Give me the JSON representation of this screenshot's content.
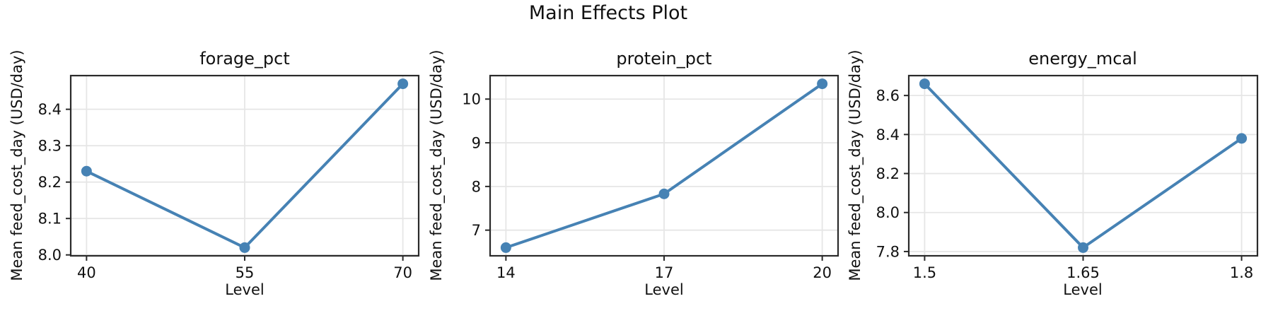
{
  "figure": {
    "title": "Main Effects Plot"
  },
  "style": {
    "accent_color": "#4682B4",
    "grid_color": "#e6e6e6",
    "spine_color": "#2a2a2a",
    "text_color": "#111111",
    "background_color": "#ffffff"
  },
  "chart_data": [
    {
      "type": "line",
      "title": "forage_pct",
      "xlabel": "Level",
      "ylabel": "Mean feed_cost_day (USD/day)",
      "x": [
        40,
        55,
        70
      ],
      "y": [
        8.23,
        8.02,
        8.47
      ],
      "xticks": [
        40,
        55,
        70
      ],
      "xtick_labels": [
        "40",
        "55",
        "70"
      ],
      "yticks": [
        8.0,
        8.1,
        8.2,
        8.3,
        8.4
      ],
      "ytick_labels": [
        "8.0",
        "8.1",
        "8.2",
        "8.3",
        "8.4"
      ],
      "xlim": [
        38.5,
        71.5
      ],
      "ylim": [
        7.9975,
        8.4925
      ],
      "grid": true,
      "legend": "none",
      "line_color": "#4682B4"
    },
    {
      "type": "line",
      "title": "protein_pct",
      "xlabel": "Level",
      "ylabel": "Mean feed_cost_day (USD/day)",
      "x": [
        14,
        17,
        20
      ],
      "y": [
        6.6,
        7.83,
        10.35
      ],
      "xticks": [
        14,
        17,
        20
      ],
      "xtick_labels": [
        "14",
        "17",
        "20"
      ],
      "yticks": [
        7,
        8,
        9,
        10
      ],
      "ytick_labels": [
        "7",
        "8",
        "9",
        "10"
      ],
      "xlim": [
        13.7,
        20.3
      ],
      "ylim": [
        6.4125,
        10.5375
      ],
      "grid": true,
      "legend": "none",
      "line_color": "#4682B4"
    },
    {
      "type": "line",
      "title": "energy_mcal",
      "xlabel": "Level",
      "ylabel": "Mean feed_cost_day (USD/day)",
      "x": [
        1.5,
        1.65,
        1.8
      ],
      "y": [
        8.66,
        7.82,
        8.38
      ],
      "xticks": [
        1.5,
        1.65,
        1.8
      ],
      "xtick_labels": [
        "1.5",
        "1.65",
        "1.8"
      ],
      "yticks": [
        7.8,
        8.0,
        8.2,
        8.4,
        8.6
      ],
      "ytick_labels": [
        "7.8",
        "8.0",
        "8.2",
        "8.4",
        "8.6"
      ],
      "xlim": [
        1.485,
        1.815
      ],
      "ylim": [
        7.778,
        8.702
      ],
      "grid": true,
      "legend": "none",
      "line_color": "#4682B4"
    }
  ]
}
